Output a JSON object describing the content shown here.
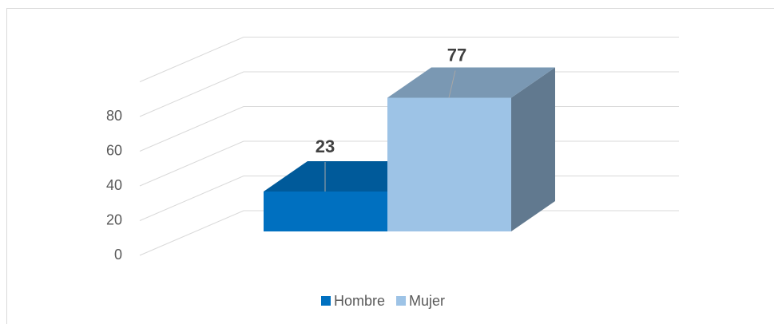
{
  "chart_data": {
    "type": "bar3d",
    "categories": [
      ""
    ],
    "series": [
      {
        "name": "Hombre",
        "color": "#0070c0",
        "values": [
          23
        ]
      },
      {
        "name": "Mujer",
        "color": "#9dc3e6",
        "values": [
          77
        ]
      }
    ],
    "ylim": [
      0,
      100
    ],
    "yticks": [
      0,
      20,
      40,
      60,
      80
    ],
    "grid": true,
    "legend": "bottom"
  }
}
